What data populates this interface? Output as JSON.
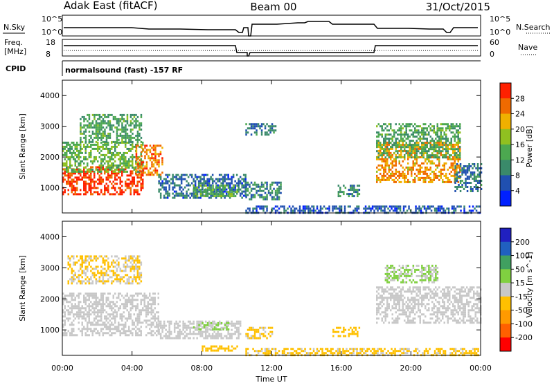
{
  "header": {
    "station": "Adak East (fitACF)",
    "beam": "Beam 00",
    "date": "31/Oct/2015"
  },
  "params": {
    "nsky_label": "N.Sky",
    "nsearch_label": "N.Search",
    "nsky_ticks": [
      "10^5",
      "10^0"
    ],
    "nsearch_ticks": [
      "10^5",
      "10^0"
    ],
    "freq_label_1": "Freq.",
    "freq_label_2": "[MHz]",
    "freq_ticks": [
      "18",
      "8"
    ],
    "nave_label": "Nave",
    "nave_ticks": [
      "60",
      "0"
    ],
    "cpid_label": "CPID",
    "cpid_text": "normalsound (fast) -157 RF"
  },
  "x_axis": {
    "label": "Time UT",
    "ticks": [
      "00:00",
      "04:00",
      "08:00",
      "12:00",
      "16:00",
      "20:00",
      "00:00"
    ],
    "range_hours": [
      0,
      24
    ]
  },
  "colors": {
    "power_scale": [
      "#0020ff",
      "#2050b0",
      "#3a8a6a",
      "#4ca850",
      "#90c020",
      "#f0b000",
      "#f06a00",
      "#ff2000"
    ],
    "velocity_scale": [
      "#ff0000",
      "#ff6000",
      "#ff9a00",
      "#ffc000",
      "#c8c8c8",
      "#80d040",
      "#40a060",
      "#2060c0",
      "#2020c0"
    ],
    "ground_scatter": "#c8c8c8"
  },
  "chart_data": [
    {
      "type": "heatmap",
      "title": "",
      "xlabel": "",
      "ylabel": "Slant Range [km]",
      "x_ticks": [
        "00:00",
        "04:00",
        "08:00",
        "12:00",
        "16:00",
        "20:00",
        "00:00"
      ],
      "y_ticks": [
        "1000",
        "2000",
        "3000",
        "4000"
      ],
      "xlim_hours": [
        0,
        24
      ],
      "ylim_km": [
        180,
        4500
      ],
      "colorbar": {
        "label": "Power [dB]",
        "ticks": [
          "28",
          "24",
          "20",
          "16",
          "12",
          "8",
          "4"
        ],
        "range": [
          0,
          30
        ]
      },
      "regions": [
        {
          "t0": 0.0,
          "t1": 4.6,
          "r0": 800,
          "r1": 1700,
          "value": 27
        },
        {
          "t0": 0.0,
          "t1": 4.6,
          "r0": 1500,
          "r1": 2500,
          "value": 14
        },
        {
          "t0": 1.0,
          "t1": 4.5,
          "r0": 2500,
          "r1": 3400,
          "value": 12
        },
        {
          "t0": 4.2,
          "t1": 5.7,
          "r0": 1400,
          "r1": 2400,
          "value": 24
        },
        {
          "t0": 5.5,
          "t1": 10.5,
          "r0": 650,
          "r1": 1450,
          "value": 7
        },
        {
          "t0": 7.5,
          "t1": 10.0,
          "r0": 750,
          "r1": 1100,
          "value": 13
        },
        {
          "t0": 10.5,
          "t1": 12.5,
          "r0": 600,
          "r1": 1200,
          "value": 9
        },
        {
          "t0": 10.5,
          "t1": 12.2,
          "r0": 2700,
          "r1": 3100,
          "value": 8
        },
        {
          "t0": 15.8,
          "t1": 17.0,
          "r0": 700,
          "r1": 1100,
          "value": 10
        },
        {
          "t0": 18.0,
          "t1": 22.8,
          "r0": 1200,
          "r1": 2500,
          "value": 22
        },
        {
          "t0": 18.0,
          "t1": 22.8,
          "r0": 2000,
          "r1": 3100,
          "value": 12
        },
        {
          "t0": 22.5,
          "t1": 24.0,
          "r0": 900,
          "r1": 1800,
          "value": 8
        },
        {
          "t0": 10.5,
          "t1": 24.0,
          "r0": 200,
          "r1": 420,
          "value": 6
        }
      ]
    },
    {
      "type": "heatmap",
      "title": "",
      "xlabel": "Time UT",
      "ylabel": "Slant Range [km]",
      "x_ticks": [
        "00:00",
        "04:00",
        "08:00",
        "12:00",
        "16:00",
        "20:00",
        "00:00"
      ],
      "y_ticks": [
        "1000",
        "2000",
        "3000",
        "4000"
      ],
      "xlim_hours": [
        0,
        24
      ],
      "ylim_km": [
        180,
        4500
      ],
      "colorbar": {
        "label": "Velocity [m s^-1]",
        "ticks": [
          "200",
          "100",
          "50",
          "15",
          "-15",
          "-50",
          "-100",
          "-200"
        ],
        "range": [
          -250,
          250
        ]
      },
      "regions": [
        {
          "t0": 0.0,
          "t1": 5.5,
          "r0": 800,
          "r1": 2200,
          "value": 0
        },
        {
          "t0": 0.3,
          "t1": 4.5,
          "r0": 2500,
          "r1": 3400,
          "value": -30
        },
        {
          "t0": 5.5,
          "t1": 10.2,
          "r0": 700,
          "r1": 1300,
          "value": 0
        },
        {
          "t0": 7.5,
          "t1": 9.5,
          "r0": 1000,
          "r1": 1250,
          "value": 40
        },
        {
          "t0": 8.0,
          "t1": 10.0,
          "r0": 350,
          "r1": 500,
          "value": -60
        },
        {
          "t0": 10.5,
          "t1": 12.0,
          "r0": 700,
          "r1": 1100,
          "value": -40
        },
        {
          "t0": 15.5,
          "t1": 17.0,
          "r0": 800,
          "r1": 1100,
          "value": -60
        },
        {
          "t0": 18.0,
          "t1": 24.0,
          "r0": 1200,
          "r1": 2400,
          "value": 0
        },
        {
          "t0": 18.5,
          "t1": 21.5,
          "r0": 2500,
          "r1": 3100,
          "value": 30
        },
        {
          "t0": 10.5,
          "t1": 24.0,
          "r0": 200,
          "r1": 420,
          "value": -40
        }
      ]
    }
  ]
}
